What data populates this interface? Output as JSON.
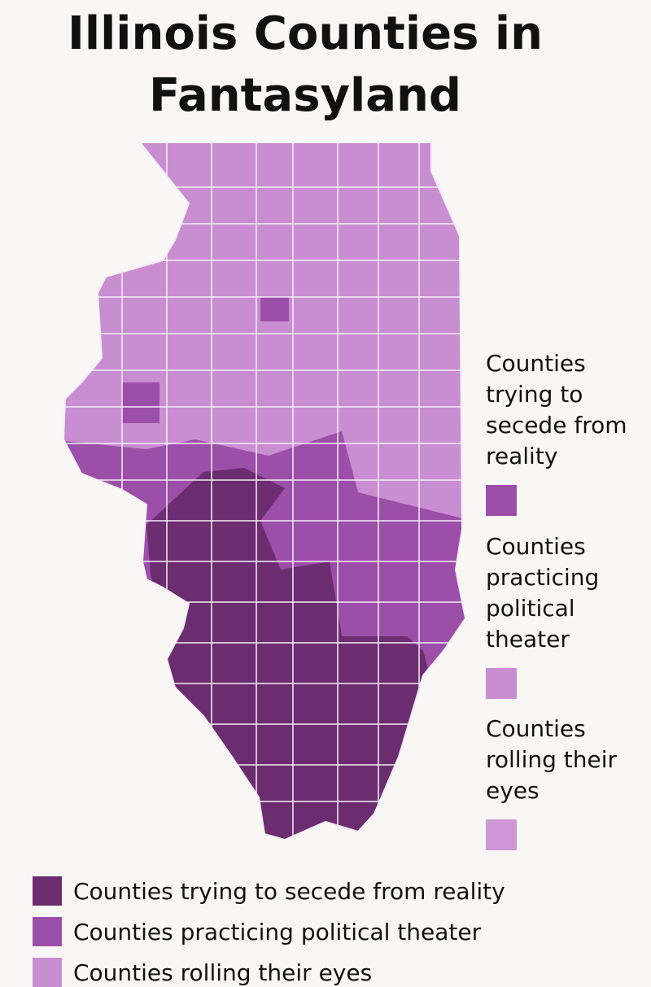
{
  "title": "Illinois Counties in Fantasyland",
  "side_legend": [
    {
      "label": "Counties trying to secede from reality",
      "color": "#9c4fa8"
    },
    {
      "label": "Counties practicing political theater",
      "color": "#c98ed2"
    },
    {
      "label": "Counties rolling their eyes",
      "color": "#cf97d6"
    }
  ],
  "bottom_legend": [
    {
      "label": "Counties trying to secede from reality",
      "color": "#6b2c70"
    },
    {
      "label": "Counties practicing political theater",
      "color": "#9c4fa8"
    },
    {
      "label": "Counties rolling their eyes",
      "color": "#c98ed2"
    }
  ]
}
